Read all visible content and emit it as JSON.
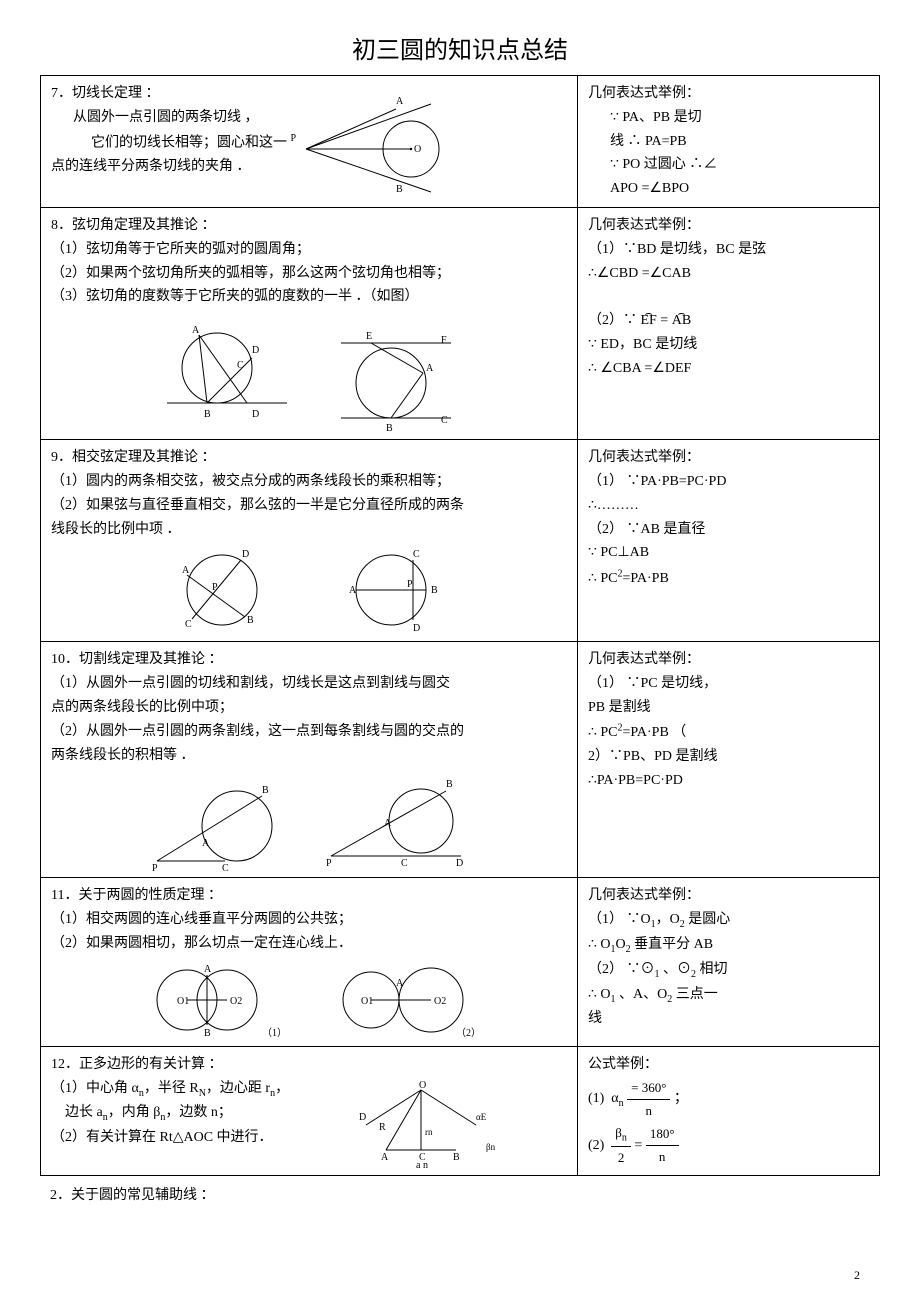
{
  "page_title": "初三圆的知识点总结",
  "page_number": "2",
  "footnote": "2．关于圆的常见辅助线 ：",
  "rows": [
    {
      "left_title": "7．切线长定理 ：",
      "left_lines": [
        "从圆外一点引圆的两条切线 ，",
        "它们的切线长相等；圆心和这一",
        "点的连线平分两条切线的夹角 ．"
      ],
      "left_label_P": "P",
      "right_title": "几何表达式举例：",
      "right_lines": [
        "∵ PA、PB 是切",
        "线 ∴ PA=PB",
        "∵ PO 过圆心 ∴∠",
        "APO =∠BPO"
      ]
    },
    {
      "left_title": "8．弦切角定理及其推论 ：",
      "left_lines": [
        "（1）弦切角等于它所夹的弧对的圆周角；",
        "（2）如果两个弦切角所夹的弧相等，那么这两个弦切角也相等；",
        "（3）弦切角的度数等于它所夹的弧的度数的一半 ．（如图）"
      ],
      "right_title": "几何表达式举例：",
      "right_lines_html": "（1）∵BD 是切线，BC 是弦<br>∴∠CBD =∠CAB<br><br>（2）∵ <span class='arc'>EF</span> = <span class='arc'>AB</span><br>∵ ED，BC 是切线<br>∴ ∠CBA =∠DEF"
    },
    {
      "left_title": "9．相交弦定理及其推论 ：",
      "left_lines": [
        "（1）圆内的两条相交弦，被交点分成的两条线段长的乘积相等；",
        "（2）如果弦与直径垂直相交，那么弦的一半是它分直径所成的两条",
        "线段长的比例中项 ．"
      ],
      "right_title": "几何表达式举例：",
      "right_lines_html": "（1） ∵PA·PB=PC·PD<br>∴………<br>（2） ∵AB 是直径<br>∵ PC⊥AB<br>∴ PC<sup>2</sup>=PA·PB"
    },
    {
      "left_title": "10．切割线定理及其推论 ：",
      "left_lines": [
        "（1）从圆外一点引圆的切线和割线，切线长是这点到割线与圆交",
        "点的两条线段长的比例中项；",
        "（2）从圆外一点引圆的两条割线，这一点到每条割线与圆的交点的",
        "两条线段长的积相等 ．"
      ],
      "right_title": "几何表达式举例：",
      "right_lines_html": "（1） ∵PC 是切线，<br>PB 是割线<br>∴ PC<sup>2</sup>=PA·PB （<br>2）∵PB、PD 是割线<br>∴PA·PB=PC·PD"
    },
    {
      "left_title": "11．关于两圆的性质定理 ：",
      "left_lines": [
        "（1）相交两圆的连心线垂直平分两圆的公共弦；",
        "（2）如果两圆相切，那么切点一定在连心线上．"
      ],
      "right_title": "几何表达式举例：",
      "right_lines_html": "（1） ∵O<sub>1</sub>，O<sub>2</sub> 是圆心<br>∴ O<sub>1</sub>O<sub>2</sub> 垂直平分 AB<br>（2） ∵⊙<sub>1</sub> 、⊙<sub>2</sub> 相切<br>∴ O<sub>1</sub> 、A、O<sub>2</sub> 三点一<br>线"
    },
    {
      "left_title": "12．正多边形的有关计算 ：",
      "left_lines_html": "（1）中心角 α<sub>n</sub>，半径 R<sub>N</sub>，边心距 r<sub>n</sub>，<br>&nbsp;&nbsp;&nbsp;&nbsp;边长 a<sub>n</sub>，内角 β<sub>n</sub>，边数 n；<br>（2）有关计算在 Rt△AOC 中进行．",
      "right_title": "公式举例：",
      "right_lines_html": "(1)&nbsp;&nbsp;α<sub>n</sub> <span class='frac'><span class='num'>= 360°</span><span class='den'>n</span></span> ；<br>(2)&nbsp;&nbsp;<span class='frac'><span class='num'>β<sub>n</sub></span><span class='den'>2</span></span> = <span class='frac'><span class='num'>180°</span><span class='den'>n</span></span>"
    }
  ]
}
